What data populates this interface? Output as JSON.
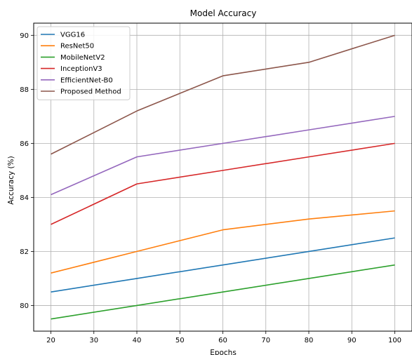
{
  "chart_data": {
    "type": "line",
    "title": "Model Accuracy",
    "xlabel": "Epochs",
    "ylabel": "Accuracy (%)",
    "x": [
      20,
      40,
      60,
      80,
      100
    ],
    "xticks": [
      20,
      30,
      40,
      50,
      60,
      70,
      80,
      90,
      100
    ],
    "yticks": [
      80,
      82,
      84,
      86,
      88,
      90
    ],
    "xlim": [
      16,
      104
    ],
    "ylim": [
      79.05,
      90.45
    ],
    "grid": true,
    "legend_position": "top-left",
    "series": [
      {
        "name": "VGG16",
        "color": "#1f77b4",
        "values": [
          80.5,
          81.0,
          81.5,
          82.0,
          82.5
        ]
      },
      {
        "name": "ResNet50",
        "color": "#ff7f0e",
        "values": [
          81.2,
          82.0,
          82.8,
          83.2,
          83.5
        ]
      },
      {
        "name": "MobileNetV2",
        "color": "#2ca02c",
        "values": [
          79.5,
          80.0,
          80.5,
          81.0,
          81.5
        ]
      },
      {
        "name": "InceptionV3",
        "color": "#d62728",
        "values": [
          83.0,
          84.5,
          85.0,
          85.5,
          86.0
        ]
      },
      {
        "name": "EfficientNet-B0",
        "color": "#9467bd",
        "values": [
          84.1,
          85.5,
          86.0,
          86.5,
          87.0
        ]
      },
      {
        "name": "Proposed Method",
        "color": "#8c564b",
        "values": [
          85.6,
          87.2,
          88.5,
          89.0,
          90.0
        ]
      }
    ]
  }
}
